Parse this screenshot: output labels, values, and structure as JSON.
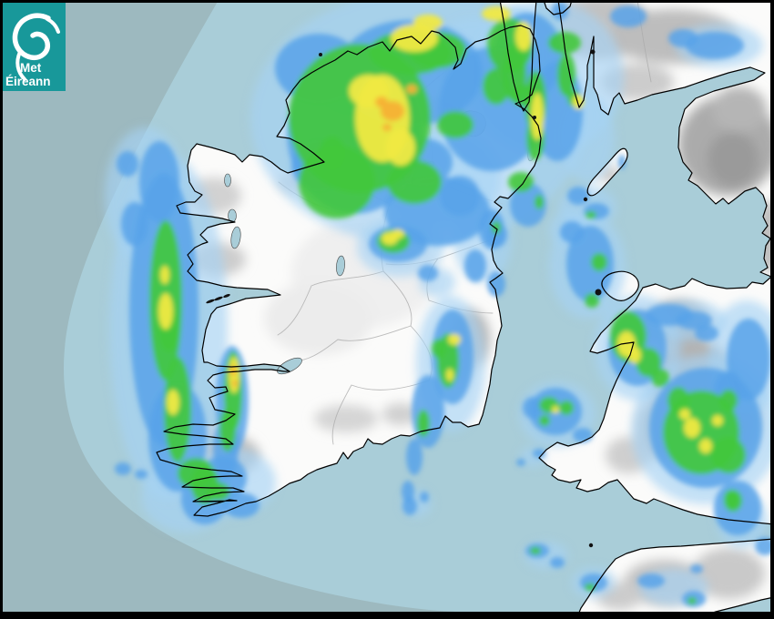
{
  "branding": {
    "logo_line1": "Met",
    "logo_line2": "Éireann",
    "logo_bg": "#18989a",
    "logo_text_color": "#ffffff",
    "logo_icon": "met-eireann-swirl-icon"
  },
  "map": {
    "sea_color": "#a9cdd8",
    "sea_outside_radar_color": "#9db9bf",
    "land_color": "#fbfbfa",
    "coastline_color": "#000000",
    "county_border_color": "#ababab",
    "lake_color": "#a9cdd8",
    "frame_color": "#000000"
  },
  "radar": {
    "levels": [
      {
        "name": "rain-light",
        "color": "#a6d3f4",
        "opacity": 0.65
      },
      {
        "name": "rain-moderate",
        "color": "#58a2e9",
        "opacity": 0.85
      },
      {
        "name": "rain-heavy",
        "color": "#42c83b",
        "opacity": 0.9
      },
      {
        "name": "rain-very-heavy",
        "color": "#f0e943",
        "opacity": 0.95
      },
      {
        "name": "rain-intense",
        "color": "#f6b136",
        "opacity": 0.95
      }
    ],
    "cells": [
      [
        460,
        130,
        185,
        140,
        0
      ],
      [
        600,
        85,
        85,
        85,
        0
      ],
      [
        520,
        60,
        45,
        40,
        0
      ],
      [
        480,
        195,
        70,
        55,
        0
      ],
      [
        185,
        360,
        65,
        190,
        0
      ],
      [
        160,
        215,
        45,
        75,
        0
      ],
      [
        205,
        545,
        50,
        40,
        0
      ],
      [
        255,
        530,
        48,
        38,
        0
      ],
      [
        530,
        265,
        32,
        45,
        0
      ],
      [
        495,
        400,
        38,
        75,
        0
      ],
      [
        440,
        272,
        48,
        32,
        0
      ],
      [
        645,
        292,
        42,
        58,
        0
      ],
      [
        625,
        252,
        22,
        20,
        0
      ],
      [
        645,
        152,
        30,
        48,
        0
      ],
      [
        790,
        50,
        48,
        24,
        0
      ],
      [
        700,
        382,
        48,
        58,
        0
      ],
      [
        755,
        352,
        42,
        22,
        0
      ],
      [
        820,
        392,
        42,
        62,
        0
      ],
      [
        775,
        472,
        82,
        82,
        0
      ],
      [
        612,
        455,
        42,
        36,
        0
      ],
      [
        600,
        610,
        24,
        15,
        0
      ],
      [
        652,
        640,
        24,
        17,
        0
      ],
      [
        740,
        645,
        38,
        20,
        0
      ],
      [
        815,
        572,
        28,
        30,
        0
      ],
      [
        458,
        553,
        16,
        15,
        0
      ],
      [
        645,
        228,
        32,
        24,
        0
      ],
      [
        585,
        502,
        14,
        11,
        0
      ],
      [
        565,
        62,
        30,
        58,
        0
      ],
      [
        480,
        310,
        20,
        16,
        0
      ],
      [
        390,
        145,
        75,
        90,
        1
      ],
      [
        450,
        80,
        80,
        58,
        1
      ],
      [
        350,
        75,
        48,
        38,
        1
      ],
      [
        540,
        120,
        58,
        68,
        1
      ],
      [
        480,
        232,
        58,
        38,
        1
      ],
      [
        580,
        62,
        38,
        48,
        1
      ],
      [
        612,
        122,
        28,
        55,
        1
      ],
      [
        465,
        178,
        32,
        26,
        1
      ],
      [
        505,
        215,
        22,
        22,
        1
      ],
      [
        350,
        182,
        30,
        28,
        1
      ],
      [
        545,
        258,
        12,
        14,
        1
      ],
      [
        580,
        225,
        20,
        24,
        1
      ],
      [
        180,
        340,
        38,
        150,
        1
      ],
      [
        175,
        200,
        22,
        45,
        1
      ],
      [
        148,
        246,
        15,
        24,
        1
      ],
      [
        140,
        180,
        12,
        14,
        1
      ],
      [
        195,
        480,
        32,
        60,
        1
      ],
      [
        225,
        548,
        26,
        28,
        1
      ],
      [
        255,
        440,
        18,
        60,
        1
      ],
      [
        248,
        492,
        14,
        34,
        1
      ],
      [
        245,
        525,
        26,
        24,
        1
      ],
      [
        265,
        555,
        20,
        14,
        1
      ],
      [
        135,
        515,
        9,
        7,
        1
      ],
      [
        155,
        521,
        7,
        5,
        1
      ],
      [
        540,
        252,
        14,
        22,
        1
      ],
      [
        522,
        292,
        12,
        18,
        1
      ],
      [
        545,
        312,
        10,
        14,
        1
      ],
      [
        497,
        392,
        23,
        52,
        1
      ],
      [
        470,
        452,
        18,
        40,
        1
      ],
      [
        455,
        502,
        9,
        20,
        1
      ],
      [
        448,
        540,
        7,
        12,
        1
      ],
      [
        437,
        268,
        32,
        20,
        1
      ],
      [
        470,
        300,
        11,
        9,
        1
      ],
      [
        635,
        215,
        12,
        10,
        1
      ],
      [
        655,
        232,
        14,
        9,
        1
      ],
      [
        648,
        290,
        26,
        42,
        1
      ],
      [
        628,
        255,
        13,
        12,
        1
      ],
      [
        700,
        382,
        32,
        42,
        1
      ],
      [
        735,
        346,
        26,
        12,
        1
      ],
      [
        762,
        352,
        20,
        10,
        1
      ],
      [
        776,
        366,
        13,
        9,
        1
      ],
      [
        822,
        395,
        24,
        45,
        1
      ],
      [
        800,
        428,
        16,
        20,
        1
      ],
      [
        775,
        470,
        62,
        66,
        1
      ],
      [
        810,
        558,
        26,
        30,
        1
      ],
      [
        840,
        600,
        11,
        10,
        1
      ],
      [
        610,
        452,
        29,
        26,
        1
      ],
      [
        585,
        448,
        11,
        12,
        1
      ],
      [
        640,
        478,
        11,
        8,
        1
      ],
      [
        592,
        498,
        7,
        5,
        1
      ],
      [
        572,
        508,
        5,
        4,
        1
      ],
      [
        590,
        605,
        13,
        8,
        1
      ],
      [
        612,
        618,
        8,
        6,
        1
      ],
      [
        652,
        640,
        15,
        10,
        1
      ],
      [
        715,
        638,
        15,
        8,
        1
      ],
      [
        762,
        658,
        13,
        9,
        1
      ],
      [
        765,
        625,
        7,
        5,
        1
      ],
      [
        683,
        178,
        4,
        8,
        1
      ],
      [
        450,
        556,
        8,
        10,
        1
      ],
      [
        466,
        546,
        5,
        6,
        1
      ],
      [
        750,
        42,
        16,
        10,
        1
      ],
      [
        785,
        50,
        32,
        15,
        1
      ],
      [
        690,
        18,
        20,
        12,
        1
      ],
      [
        615,
        12,
        9,
        10,
        1
      ],
      [
        395,
        130,
        78,
        82,
        2
      ],
      [
        370,
        200,
        42,
        40,
        2
      ],
      [
        450,
        58,
        45,
        24,
        2
      ],
      [
        480,
        55,
        32,
        20,
        2
      ],
      [
        560,
        50,
        25,
        30,
        2
      ],
      [
        565,
        80,
        13,
        32,
        2
      ],
      [
        588,
        112,
        12,
        34,
        2
      ],
      [
        588,
        152,
        10,
        24,
        2
      ],
      [
        455,
        200,
        30,
        24,
        2
      ],
      [
        500,
        137,
        20,
        15,
        2
      ],
      [
        545,
        95,
        15,
        20,
        2
      ],
      [
        572,
        200,
        14,
        11,
        2
      ],
      [
        620,
        47,
        18,
        12,
        2
      ],
      [
        575,
        105,
        14,
        12,
        2
      ],
      [
        622,
        82,
        10,
        24,
        2
      ],
      [
        365,
        168,
        14,
        18,
        2
      ],
      [
        182,
        330,
        18,
        88,
        2
      ],
      [
        195,
        450,
        15,
        58,
        2
      ],
      [
        185,
        362,
        11,
        24,
        2
      ],
      [
        225,
        532,
        15,
        22,
        2
      ],
      [
        250,
        472,
        9,
        24,
        2
      ],
      [
        215,
        520,
        20,
        17,
        2
      ],
      [
        240,
        540,
        12,
        10,
        2
      ],
      [
        256,
        430,
        10,
        44,
        2
      ],
      [
        492,
        396,
        12,
        30,
        2
      ],
      [
        482,
        383,
        8,
        11,
        2
      ],
      [
        465,
        465,
        7,
        15,
        2
      ],
      [
        432,
        265,
        18,
        13,
        2
      ],
      [
        658,
        288,
        9,
        10,
        2
      ],
      [
        650,
        330,
        8,
        8,
        2
      ],
      [
        690,
        370,
        20,
        28,
        2
      ],
      [
        712,
        398,
        14,
        16,
        2
      ],
      [
        725,
        415,
        10,
        10,
        2
      ],
      [
        770,
        475,
        42,
        46,
        2
      ],
      [
        800,
        500,
        19,
        20,
        2
      ],
      [
        745,
        440,
        12,
        15,
        2
      ],
      [
        800,
        440,
        10,
        12,
        2
      ],
      [
        805,
        550,
        10,
        12,
        2
      ],
      [
        803,
        548,
        8,
        10,
        2
      ],
      [
        603,
        445,
        11,
        9,
        2
      ],
      [
        622,
        448,
        8,
        8,
        2
      ],
      [
        598,
        462,
        6,
        6,
        2
      ],
      [
        588,
        605,
        6,
        4,
        2
      ],
      [
        648,
        645,
        6,
        4,
        2
      ],
      [
        760,
        660,
        5,
        4,
        2
      ],
      [
        649,
        236,
        6,
        4,
        2
      ],
      [
        592,
        222,
        5,
        8,
        2
      ],
      [
        545,
        250,
        5,
        7,
        2
      ],
      [
        630,
        108,
        7,
        9,
        2
      ],
      [
        420,
        130,
        30,
        48,
        3
      ],
      [
        405,
        100,
        22,
        18,
        3
      ],
      [
        440,
        162,
        16,
        20,
        3
      ],
      [
        455,
        42,
        26,
        15,
        3
      ],
      [
        470,
        25,
        16,
        9,
        3
      ],
      [
        545,
        15,
        16,
        8,
        3
      ],
      [
        575,
        40,
        9,
        16,
        3
      ],
      [
        590,
        128,
        7,
        26,
        3
      ],
      [
        635,
        112,
        6,
        8,
        3
      ],
      [
        428,
        262,
        9,
        7,
        3
      ],
      [
        437,
        257,
        7,
        5,
        3
      ],
      [
        499,
        373,
        7,
        6,
        3
      ],
      [
        494,
        412,
        4,
        7,
        3
      ],
      [
        182,
        342,
        8,
        20,
        3
      ],
      [
        190,
        442,
        7,
        14,
        3
      ],
      [
        181,
        302,
        5,
        10,
        3
      ],
      [
        257,
        412,
        6,
        20,
        3
      ],
      [
        688,
        378,
        10,
        14,
        3
      ],
      [
        697,
        390,
        7,
        9,
        3
      ],
      [
        760,
        470,
        9,
        11,
        3
      ],
      [
        775,
        490,
        7,
        8,
        3
      ],
      [
        788,
        462,
        6,
        6,
        3
      ],
      [
        752,
        455,
        6,
        6,
        3
      ],
      [
        610,
        450,
        4,
        4,
        3
      ],
      [
        431,
        122,
        13,
        11,
        4
      ],
      [
        419,
        112,
        7,
        6,
        4
      ],
      [
        425,
        140,
        5,
        4,
        4
      ],
      [
        452,
        98,
        6,
        5,
        4
      ],
      [
        256,
        407,
        3.5,
        6,
        4
      ],
      [
        258,
        421,
        3,
        4,
        4
      ]
    ]
  }
}
